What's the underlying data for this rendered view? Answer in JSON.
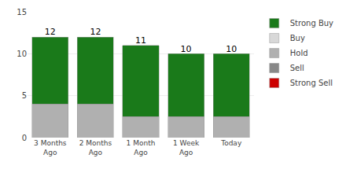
{
  "chart_data": {
    "type": "bar",
    "stacked": true,
    "categories": [
      "3 Months\nAgo",
      "2 Months\nAgo",
      "1 Month\nAgo",
      "1 Week\nAgo",
      "Today"
    ],
    "series": [
      {
        "name": "Strong Sell",
        "color": "#cc0000",
        "values": [
          0,
          0,
          0,
          0,
          0
        ]
      },
      {
        "name": "Sell",
        "color": "#888888",
        "values": [
          0,
          0,
          0,
          0,
          0
        ]
      },
      {
        "name": "Hold",
        "color": "#b0b0b0",
        "values": [
          4,
          4,
          2.5,
          2.5,
          2.5
        ]
      },
      {
        "name": "Buy",
        "color": "#d8d8d8",
        "values": [
          0,
          0,
          0,
          0,
          0
        ]
      },
      {
        "name": "Strong Buy",
        "color": "#1a7a1a",
        "values": [
          8,
          8,
          8.5,
          7.5,
          7.5
        ]
      }
    ],
    "totals": [
      12,
      12,
      11,
      10,
      10
    ],
    "ylim": [
      0,
      15
    ],
    "yticks": [
      0,
      5,
      10,
      15
    ],
    "grid": true
  }
}
